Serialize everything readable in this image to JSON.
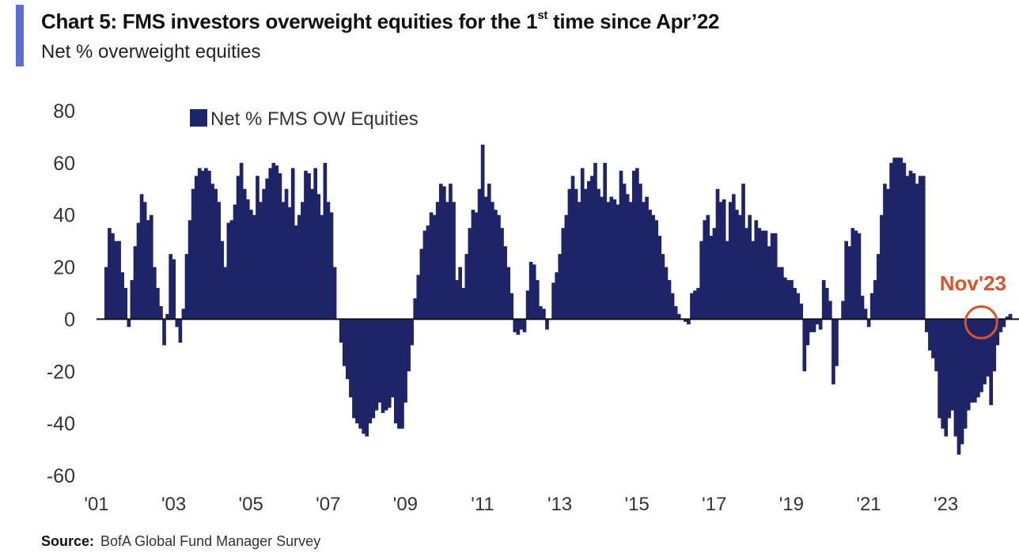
{
  "header": {
    "title_pre": "Chart 5: FMS investors overweight equities for the 1",
    "title_sup": "st",
    "title_post": " time since Apr’22",
    "subtitle": "Net % overweight equities"
  },
  "source": {
    "label": "Source:",
    "text": "BofA Global Fund Manager Survey"
  },
  "colors": {
    "bars": "#1f2468",
    "axis": "#111111",
    "highlight": "#d9532b",
    "accent": "#5b6fd6"
  },
  "chart_data": {
    "type": "bar",
    "title": "Chart 5: FMS investors overweight equities for the 1st time since Apr’22",
    "ylabel": "Net % overweight equities",
    "xlabel": "",
    "ylim": [
      -60,
      80
    ],
    "yticks": [
      80,
      60,
      40,
      20,
      0,
      -20,
      -40,
      -60
    ],
    "xticks": [
      {
        "label": "'01",
        "year": 2001
      },
      {
        "label": "'03",
        "year": 2003
      },
      {
        "label": "'05",
        "year": 2005
      },
      {
        "label": "'07",
        "year": 2007
      },
      {
        "label": "'09",
        "year": 2009
      },
      {
        "label": "'11",
        "year": 2011
      },
      {
        "label": "'13",
        "year": 2013
      },
      {
        "label": "'15",
        "year": 2015
      },
      {
        "label": "'17",
        "year": 2017
      },
      {
        "label": "'19",
        "year": 2019
      },
      {
        "label": "'21",
        "year": 2021
      },
      {
        "label": "'23",
        "year": 2023
      }
    ],
    "x_start": "2001-01",
    "frequency": "monthly",
    "legend": {
      "label": "Net % FMS OW Equities",
      "position": "top-left"
    },
    "annotation": {
      "label": "Nov'23",
      "index": 274
    },
    "series": [
      {
        "name": "Net % FMS OW Equities",
        "values": [
          20,
          35,
          33,
          30,
          30,
          18,
          12,
          -3,
          15,
          28,
          37,
          48,
          45,
          38,
          40,
          20,
          12,
          5,
          -10,
          2,
          25,
          23,
          -3,
          -9,
          4,
          25,
          38,
          50,
          55,
          58,
          57,
          58,
          57,
          52,
          50,
          45,
          30,
          20,
          37,
          38,
          44,
          55,
          60,
          50,
          46,
          42,
          40,
          55,
          45,
          50,
          54,
          58,
          60,
          59,
          56,
          45,
          50,
          43,
          58,
          36,
          40,
          45,
          57,
          56,
          50,
          58,
          48,
          40,
          60,
          45,
          41,
          20,
          0,
          -9,
          -18,
          -23,
          -30,
          -38,
          -40,
          -42,
          -44,
          -45,
          -40,
          -38,
          -35,
          -32,
          -36,
          -35,
          -34,
          -30,
          -40,
          -42,
          -42,
          -32,
          -20,
          -10,
          8,
          17,
          27,
          34,
          36,
          41,
          40,
          45,
          52,
          51,
          45,
          52,
          45,
          15,
          20,
          12,
          25,
          35,
          42,
          41,
          50,
          67,
          47,
          52,
          45,
          42,
          40,
          35,
          28,
          20,
          10,
          -5,
          -6,
          -4,
          -5,
          11,
          22,
          21,
          15,
          5,
          4,
          -4,
          0,
          14,
          18,
          25,
          35,
          40,
          50,
          55,
          50,
          45,
          58,
          50,
          53,
          55,
          60,
          50,
          47,
          60,
          45,
          47,
          46,
          44,
          57,
          52,
          48,
          45,
          57,
          58,
          52,
          45,
          47,
          42,
          40,
          38,
          32,
          25,
          20,
          15,
          10,
          5,
          2,
          0,
          -1,
          -2,
          10,
          11,
          12,
          30,
          38,
          40,
          32,
          35,
          50,
          45,
          46,
          30,
          45,
          48,
          42,
          40,
          52,
          35,
          40,
          30,
          38,
          35,
          34,
          34,
          28,
          33,
          33,
          20,
          20,
          16,
          15,
          15,
          12,
          10,
          6,
          -20,
          -10,
          -5,
          -5,
          -2,
          -4,
          15,
          12,
          7,
          -25,
          -18,
          0,
          7,
          30,
          28,
          35,
          34,
          33,
          9,
          4,
          -3,
          10,
          15,
          25,
          40,
          52,
          50,
          60,
          62,
          62,
          62,
          60,
          55,
          57,
          56,
          52,
          55,
          55,
          -5,
          -12,
          -15,
          -20,
          -38,
          -42,
          -45,
          -38,
          -35,
          -45,
          -52,
          -48,
          -42,
          -35,
          -32,
          -32,
          -30,
          -28,
          -25,
          -22,
          -33,
          -20,
          -10,
          -5,
          -3,
          1,
          2
        ]
      }
    ]
  }
}
